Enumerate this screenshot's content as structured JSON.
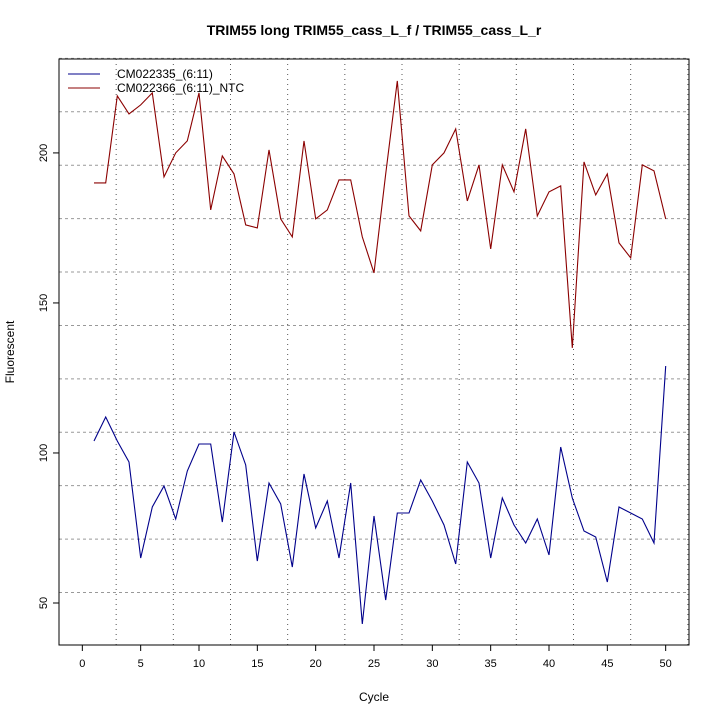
{
  "chart_data": {
    "type": "line",
    "title": "TRIM55 long TRIM55_cass_L_f / TRIM55_cass_L_r",
    "xlabel": "Cycle",
    "ylabel": "Fluorescent",
    "xlim": [
      -2,
      52
    ],
    "ylim": [
      36,
      231.3
    ],
    "xticks": [
      0,
      5,
      10,
      15,
      20,
      25,
      30,
      35,
      40,
      45,
      50
    ],
    "yticks": [
      50,
      100,
      150,
      200
    ],
    "grid": true,
    "legend_position": "top-left",
    "x": [
      1,
      2,
      3,
      4,
      5,
      6,
      7,
      8,
      9,
      10,
      11,
      12,
      13,
      14,
      15,
      16,
      17,
      18,
      19,
      20,
      21,
      22,
      23,
      24,
      25,
      26,
      27,
      28,
      29,
      30,
      31,
      32,
      33,
      34,
      35,
      36,
      37,
      38,
      39,
      40,
      41,
      42,
      43,
      44,
      45,
      46,
      47,
      48,
      49,
      50
    ],
    "series": [
      {
        "name": "CM022335_(6:11)",
        "color": "#00008B",
        "values": [
          104,
          112,
          104,
          97,
          65,
          82,
          89,
          78,
          94,
          103,
          103,
          77,
          107,
          96,
          64,
          90,
          83,
          62,
          93,
          75,
          84,
          65,
          90,
          43,
          79,
          51,
          80,
          80,
          91,
          84,
          76,
          63,
          97,
          90,
          65,
          85,
          76,
          70,
          78,
          66,
          102,
          85,
          74,
          72,
          57,
          82,
          80,
          78,
          70,
          129
        ]
      },
      {
        "name": "CM022366_(6:11)_NTC",
        "color": "#8B0000",
        "values": [
          190,
          190,
          219,
          213,
          216,
          220,
          192,
          200,
          204,
          220,
          181,
          199,
          193,
          176,
          175,
          201,
          178,
          172,
          204,
          178,
          181,
          191,
          191,
          172,
          160,
          193,
          224,
          179,
          174,
          196,
          200,
          208,
          184,
          196,
          168,
          196,
          187,
          208,
          179,
          187,
          189,
          135,
          197,
          186,
          193,
          170,
          165,
          196,
          194,
          178
        ]
      }
    ]
  }
}
